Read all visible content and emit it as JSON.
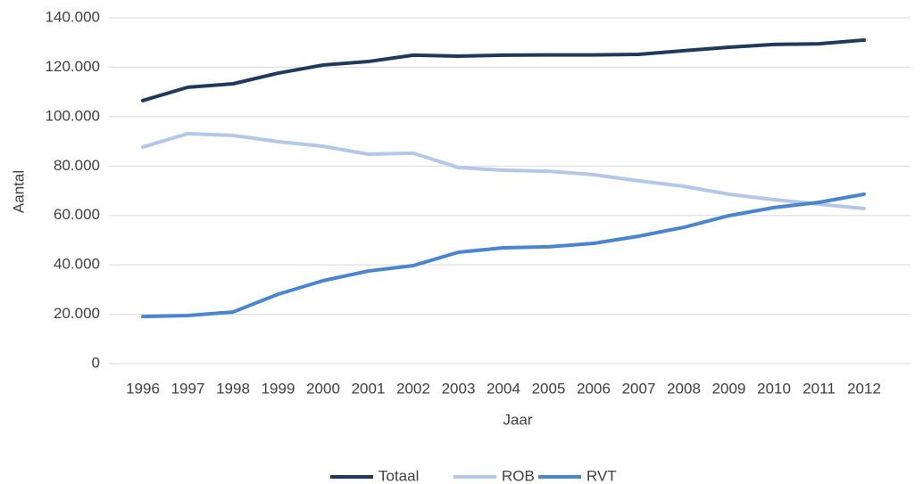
{
  "chart_data": {
    "type": "line",
    "x_label": "Jaar",
    "y_label": "Aantal",
    "categories": [
      "1996",
      "1997",
      "1998",
      "1999",
      "2000",
      "2001",
      "2002",
      "2003",
      "2004",
      "2005",
      "2006",
      "2007",
      "2008",
      "2009",
      "2010",
      "2011",
      "2012"
    ],
    "series": [
      {
        "name": "Totaal",
        "color": "#203a5c",
        "values": [
          106500,
          111900,
          113300,
          117600,
          120900,
          122300,
          124900,
          124500,
          124900,
          125000,
          125000,
          125200,
          126700,
          128100,
          129200,
          129500,
          131000
        ]
      },
      {
        "name": "ROB",
        "color": "#b4c7e7",
        "values": [
          87700,
          93100,
          92400,
          89900,
          88000,
          84800,
          85200,
          79400,
          78300,
          77900,
          76500,
          74000,
          71800,
          68600,
          66400,
          64600,
          62800
        ]
      },
      {
        "name": "RVT",
        "color": "#4a86d0",
        "values": [
          19100,
          19500,
          20900,
          28100,
          33600,
          37500,
          39700,
          45100,
          46900,
          47300,
          48700,
          51600,
          55200,
          59900,
          63200,
          65300,
          68600
        ]
      }
    ],
    "ylim": [
      0,
      140000
    ],
    "yticks": [
      0,
      {
        "value": 20000,
        "label": "20.000"
      },
      {
        "value": 40000,
        "label": "40.000"
      },
      {
        "value": 60000,
        "label": "60.000"
      },
      {
        "value": 80000,
        "label": "80.000"
      },
      {
        "value": 100000,
        "label": "100.000"
      },
      {
        "value": 120000,
        "label": "120.000"
      },
      {
        "value": 140000,
        "label": "140.000"
      }
    ],
    "grid": true,
    "legend": "bottom"
  }
}
